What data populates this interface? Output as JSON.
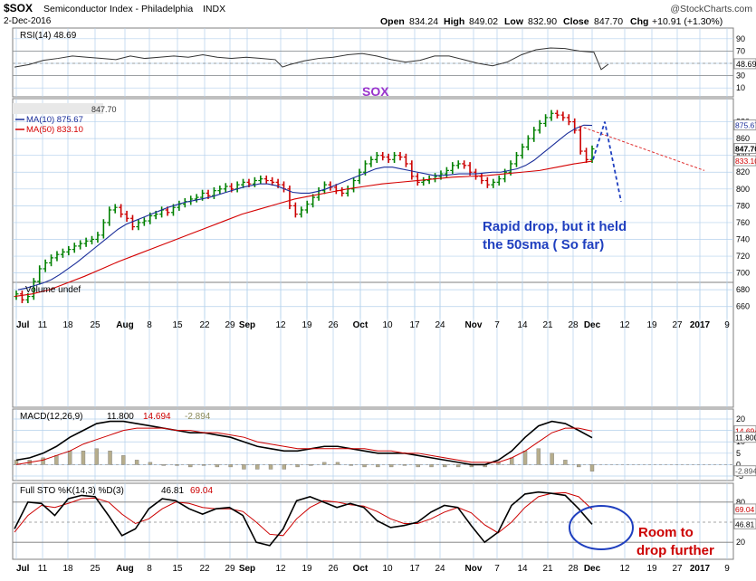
{
  "header": {
    "symbol": "$SOX",
    "name": "Semiconductor Index - Philadelphia",
    "exchange": "INDX",
    "date": "2-Dec-2016",
    "brand": "@StockCharts.com",
    "open_label": "Open",
    "open": "834.24",
    "high_label": "High",
    "high": "849.02",
    "low_label": "Low",
    "low": "832.90",
    "close_label": "Close",
    "close": "847.70",
    "chg_label": "Chg",
    "chg": "+10.91 (+1.30%)"
  },
  "colors": {
    "grid": "#b4d0ec",
    "panel_border": "#7f7f7f",
    "up": "#008000",
    "down": "#cc0000",
    "ma10": "#1a2d99",
    "ma50": "#d40000",
    "annotation_blue": "#1f3fbf",
    "annotation_red": "#cc0000",
    "sox_label": "#9933cc"
  },
  "x_axis": {
    "ticks": [
      {
        "label": "Jul",
        "bold": true
      },
      {
        "label": "11"
      },
      {
        "label": "18"
      },
      {
        "label": "25"
      },
      {
        "label": "Aug",
        "bold": true
      },
      {
        "label": "8"
      },
      {
        "label": "15"
      },
      {
        "label": "22"
      },
      {
        "label": "29"
      },
      {
        "label": "Sep",
        "bold": true
      },
      {
        "label": "12"
      },
      {
        "label": "19"
      },
      {
        "label": "26"
      },
      {
        "label": "Oct",
        "bold": true
      },
      {
        "label": "10"
      },
      {
        "label": "17"
      },
      {
        "label": "24"
      },
      {
        "label": "Nov",
        "bold": true
      },
      {
        "label": "7"
      },
      {
        "label": "14"
      },
      {
        "label": "21"
      },
      {
        "label": "28"
      },
      {
        "label": "Dec",
        "bold": true
      },
      {
        "label": "12"
      },
      {
        "label": "19"
      },
      {
        "label": "27"
      },
      {
        "label": "2017",
        "bold": true
      },
      {
        "label": "9"
      }
    ]
  },
  "chart_data": [
    {
      "type": "line",
      "panel": "RSI",
      "title": "RSI(14) 48.69",
      "ylim": [
        0,
        100
      ],
      "ticks": [
        10,
        30,
        50,
        70,
        90
      ],
      "reference_lines": [
        30,
        70
      ],
      "last_value_label": "48.69",
      "x": [
        0,
        16,
        32,
        48,
        64,
        80,
        96,
        112,
        128,
        144,
        160,
        176,
        192,
        208,
        224,
        240,
        256,
        272,
        288,
        296,
        304,
        320,
        336,
        352,
        368,
        384,
        400,
        416,
        432,
        448,
        464,
        480,
        496,
        512,
        528,
        544,
        560,
        576,
        592,
        608,
        624,
        640,
        648,
        656
      ],
      "values": [
        44,
        48,
        55,
        58,
        62,
        60,
        58,
        56,
        62,
        58,
        60,
        62,
        60,
        64,
        60,
        58,
        60,
        58,
        56,
        44,
        48,
        54,
        58,
        60,
        64,
        66,
        62,
        56,
        52,
        55,
        62,
        62,
        56,
        50,
        46,
        52,
        64,
        72,
        75,
        74,
        70,
        68,
        40,
        48.69
      ],
      "grid": true
    },
    {
      "type": "bar",
      "panel": "Price",
      "subtype": "OHLC",
      "title": "SOX",
      "ylim": [
        650,
        900
      ],
      "ticks": [
        660,
        680,
        700,
        720,
        740,
        760,
        780,
        800,
        820,
        840,
        860,
        880
      ],
      "last_values": {
        "price": "847.70",
        "ma10": "875.67",
        "ma50": "833.10"
      },
      "bars_value_y": [
        675,
        668,
        672,
        690,
        705,
        712,
        718,
        722,
        725,
        728,
        732,
        735,
        738,
        740,
        745,
        760,
        775,
        778,
        770,
        765,
        755,
        760,
        762,
        768,
        770,
        775,
        772,
        778,
        782,
        785,
        788,
        790,
        795,
        792,
        798,
        800,
        803,
        800,
        805,
        808,
        806,
        810,
        812,
        810,
        808,
        805,
        800,
        780,
        770,
        775,
        782,
        790,
        798,
        805,
        802,
        798,
        795,
        800,
        810,
        820,
        830,
        835,
        840,
        838,
        835,
        840,
        838,
        830,
        815,
        808,
        810,
        812,
        815,
        818,
        822,
        828,
        830,
        828,
        820,
        815,
        810,
        805,
        808,
        812,
        820,
        830,
        840,
        850,
        860,
        870,
        878,
        885,
        890,
        888,
        885,
        880,
        870,
        845,
        835,
        847.7
      ],
      "ma10": [
        680,
        682,
        685,
        688,
        692,
        698,
        705,
        712,
        720,
        728,
        736,
        744,
        752,
        758,
        762,
        766,
        770,
        774,
        778,
        781,
        784,
        786,
        788,
        790,
        793,
        796,
        799,
        802,
        804,
        806,
        806,
        804,
        800,
        796,
        795,
        795,
        797,
        800,
        804,
        808,
        812,
        816,
        820,
        824,
        826,
        826,
        824,
        822,
        820,
        818,
        816,
        816,
        817,
        818,
        818,
        818,
        819,
        820,
        820,
        822,
        824,
        828,
        834,
        842,
        850,
        858,
        866,
        872,
        876,
        875.67
      ],
      "ma50": [
        672,
        675,
        680,
        688,
        696,
        705,
        714,
        722,
        730,
        738,
        746,
        754,
        762,
        770,
        776,
        782,
        788,
        792,
        796,
        800,
        803,
        806,
        808,
        810,
        812,
        814,
        815,
        816,
        818,
        820,
        822,
        826,
        830,
        833.1
      ],
      "annotations": [
        {
          "text": "Rapid drop, but it held"
        },
        {
          "text": "the 50sma ( So far)"
        }
      ],
      "projection": {
        "value_start": 880,
        "value_end": 785
      },
      "trendline": {
        "value_start": 875,
        "value_end": 822
      }
    },
    {
      "type": "bar",
      "panel": "Volume",
      "title": "Volume undef",
      "values": []
    },
    {
      "type": "line",
      "panel": "MACD",
      "title": "MACD(12,26,9) 11.800, 14.694, -2.894",
      "title_parts": {
        "name": "MACD(12,26,9)",
        "macd": "11.800",
        "signal": "14.694",
        "hist": "-2.894"
      },
      "ylim": [
        -5,
        22
      ],
      "ticks": [
        -5,
        0,
        5,
        10,
        15,
        20
      ],
      "last_value_labels": [
        "14.694",
        "11.800",
        "-2.894"
      ],
      "macd": [
        2,
        3,
        5,
        8,
        12,
        15,
        18,
        19,
        19,
        18,
        17,
        16,
        15,
        14,
        14,
        13,
        12,
        10,
        8,
        7,
        6,
        6,
        7,
        8,
        8,
        7,
        6,
        5,
        5,
        5,
        4,
        3,
        2,
        1,
        0,
        0,
        2,
        6,
        12,
        17,
        19,
        18,
        15,
        11.8
      ],
      "signal": [
        0,
        1,
        2,
        4,
        6,
        9,
        11,
        13,
        15,
        16,
        16,
        16,
        15,
        15,
        14,
        14,
        13,
        12,
        10,
        9,
        8,
        7,
        7,
        7,
        7,
        7,
        7,
        6,
        6,
        5,
        5,
        4,
        3,
        2,
        1,
        1,
        1,
        3,
        6,
        10,
        14,
        16,
        16,
        14.694
      ],
      "histogram": [
        2,
        2,
        3,
        4,
        6,
        6,
        7,
        6,
        4,
        2,
        1,
        0,
        0,
        -1,
        0,
        -1,
        -1,
        -2,
        -2,
        -2,
        -2,
        -1,
        0,
        1,
        1,
        0,
        -1,
        -1,
        -1,
        0,
        -1,
        -1,
        -1,
        -1,
        -1,
        -1,
        1,
        3,
        6,
        7,
        5,
        2,
        -1,
        -2.894
      ]
    },
    {
      "type": "line",
      "panel": "Full STO",
      "title": "Full STO %K(14,3) %D(3) 46.81, 69.04",
      "title_parts": {
        "name": "Full STO %K(14,3) %D(3)",
        "k": "46.81",
        "d": "69.04"
      },
      "ylim": [
        0,
        100
      ],
      "ticks": [
        20,
        50,
        80
      ],
      "last_value_labels": [
        "69.04",
        "46.81"
      ],
      "k": [
        40,
        80,
        78,
        60,
        85,
        90,
        88,
        60,
        30,
        40,
        70,
        85,
        82,
        70,
        62,
        70,
        72,
        60,
        20,
        15,
        40,
        82,
        88,
        80,
        72,
        78,
        72,
        52,
        42,
        45,
        50,
        65,
        75,
        72,
        45,
        20,
        35,
        75,
        92,
        95,
        93,
        90,
        70,
        46.81
      ],
      "d": [
        35,
        60,
        75,
        72,
        78,
        85,
        86,
        80,
        62,
        48,
        55,
        70,
        80,
        78,
        72,
        70,
        70,
        66,
        50,
        32,
        30,
        55,
        72,
        82,
        80,
        76,
        74,
        66,
        55,
        48,
        48,
        55,
        65,
        72,
        64,
        46,
        34,
        50,
        72,
        88,
        93,
        94,
        88,
        69.04
      ],
      "annotations": [
        {
          "text": "Room to"
        },
        {
          "text": "drop further"
        }
      ]
    }
  ]
}
